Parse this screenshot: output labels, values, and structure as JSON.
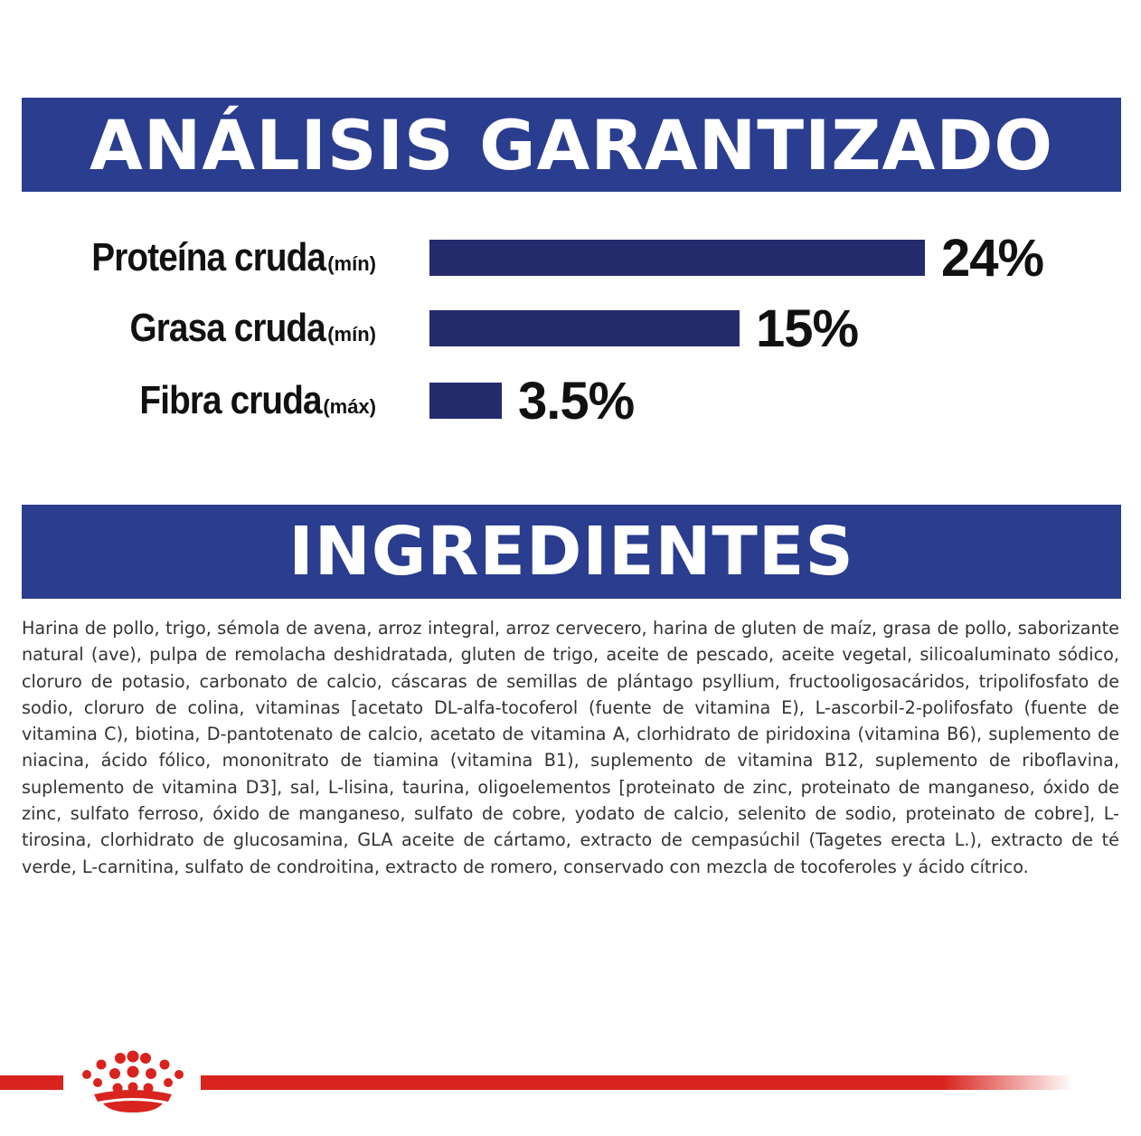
{
  "analysis": {
    "title": "ANÁLISIS GARANTIZADO",
    "color": "#2a3d8f",
    "bar_color": "#262b6d",
    "rows": [
      {
        "name": "Proteína cruda",
        "qualifier": "(mín)",
        "value": "24%",
        "percent": 24
      },
      {
        "name": "Grasa cruda",
        "qualifier": "(mín)",
        "value": "15%",
        "percent": 15
      },
      {
        "name": "Fibra cruda",
        "qualifier": "(máx)",
        "value": "3.5%",
        "percent": 3.5
      }
    ]
  },
  "ingredients": {
    "title": "INGREDIENTES",
    "text": "Harina de pollo, trigo, sémola de avena, arroz integral, arroz cervecero, harina de gluten de maíz, grasa de pollo, saborizante natural (ave), pulpa de remolacha deshidratada, gluten de trigo, aceite de pescado, aceite vegetal, silicoaluminato sódico, cloruro de potasio, carbonato de calcio, cáscaras de semillas de plántago psyllium, fructooligosacáridos, tripolifosfato de sodio, cloruro de colina, vitaminas [acetato DL-alfa-tocoferol (fuente de vitamina E), L-ascorbil-2-polifosfato (fuente de vitamina C), biotina, D-pantotenato de calcio, acetato de vitamina A, clorhidrato de piridoxina (vitamina B6), suplemento de niacina, ácido fólico, mononitrato de tiamina (vitamina B1), suplemento de vitamina B12, suplemento de riboflavina, suplemento de vitamina D3], sal, L-lisina, taurina, oligoelementos [proteinato de zinc, proteinato de manganeso, óxido de zinc, sulfato ferroso, óxido de manganeso, sulfato de cobre, yodato de calcio, selenito de sodio, proteinato de cobre], L-tirosina, clorhidrato de glucosamina, GLA aceite de cártamo, extracto de cempasúchil (Tagetes erecta L.), extracto de té verde, L-carnitina, sulfato de condroitina, extracto de romero, conservado con mezcla de tocoferoles y ácido cítrico."
  },
  "footer": {
    "logo_icon": "crown-logo-icon",
    "accent": "#d8231e"
  }
}
